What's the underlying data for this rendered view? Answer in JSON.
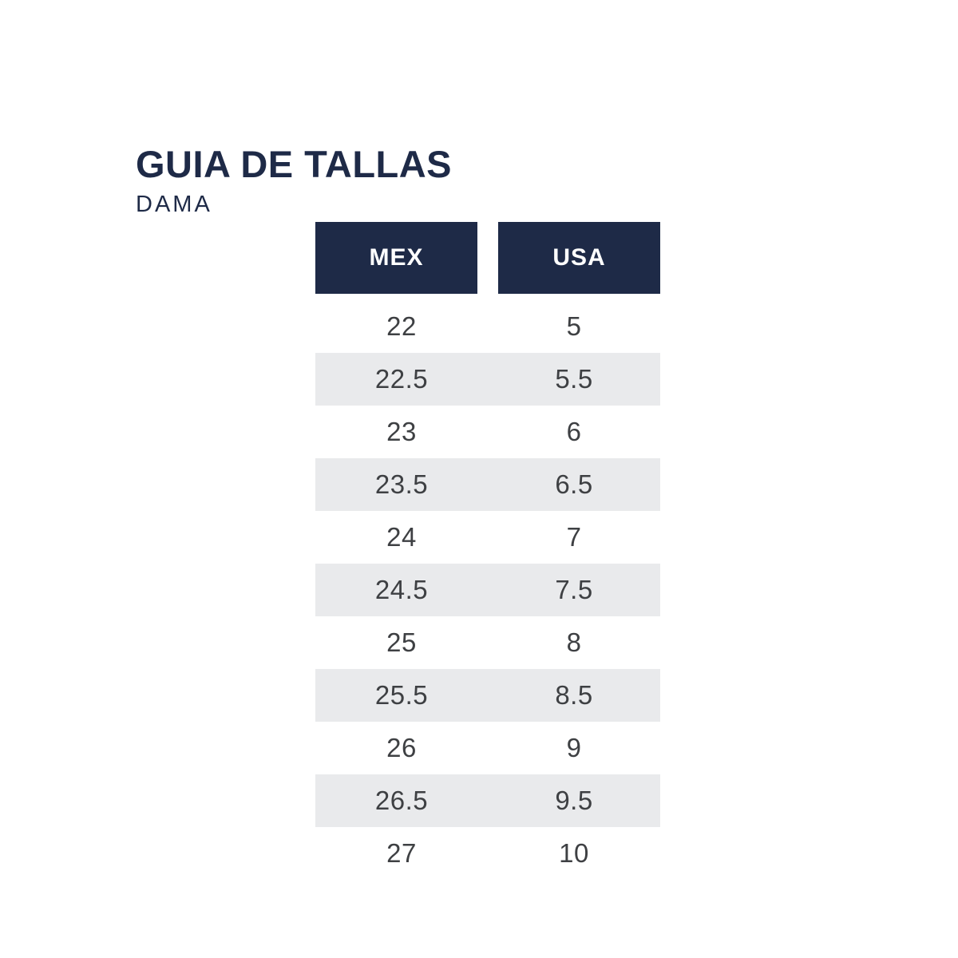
{
  "header": {
    "title": "GUIA DE TALLAS",
    "subtitle": "DAMA"
  },
  "table": {
    "columns": [
      "MEX",
      "USA"
    ],
    "rows": [
      [
        "22",
        "5"
      ],
      [
        "22.5",
        "5.5"
      ],
      [
        "23",
        "6"
      ],
      [
        "23.5",
        "6.5"
      ],
      [
        "24",
        "7"
      ],
      [
        "24.5",
        "7.5"
      ],
      [
        "25",
        "8"
      ],
      [
        "25.5",
        "8.5"
      ],
      [
        "26",
        "9"
      ],
      [
        "26.5",
        "9.5"
      ],
      [
        "27",
        "10"
      ]
    ]
  },
  "chart_data": {
    "type": "table",
    "title": "GUIA DE TALLAS",
    "subtitle": "DAMA",
    "columns": [
      "MEX",
      "USA"
    ],
    "rows": [
      [
        22,
        5
      ],
      [
        22.5,
        5.5
      ],
      [
        23,
        6
      ],
      [
        23.5,
        6.5
      ],
      [
        24,
        7
      ],
      [
        24.5,
        7.5
      ],
      [
        25,
        8
      ],
      [
        25.5,
        8.5
      ],
      [
        26,
        9
      ],
      [
        26.5,
        9.5
      ],
      [
        27,
        10
      ]
    ]
  },
  "colors": {
    "navy": "#1e2a47",
    "row_alt": "#e9eaec",
    "text_dark": "#3e4043",
    "header_text": "#ffffff",
    "background": "#ffffff"
  }
}
